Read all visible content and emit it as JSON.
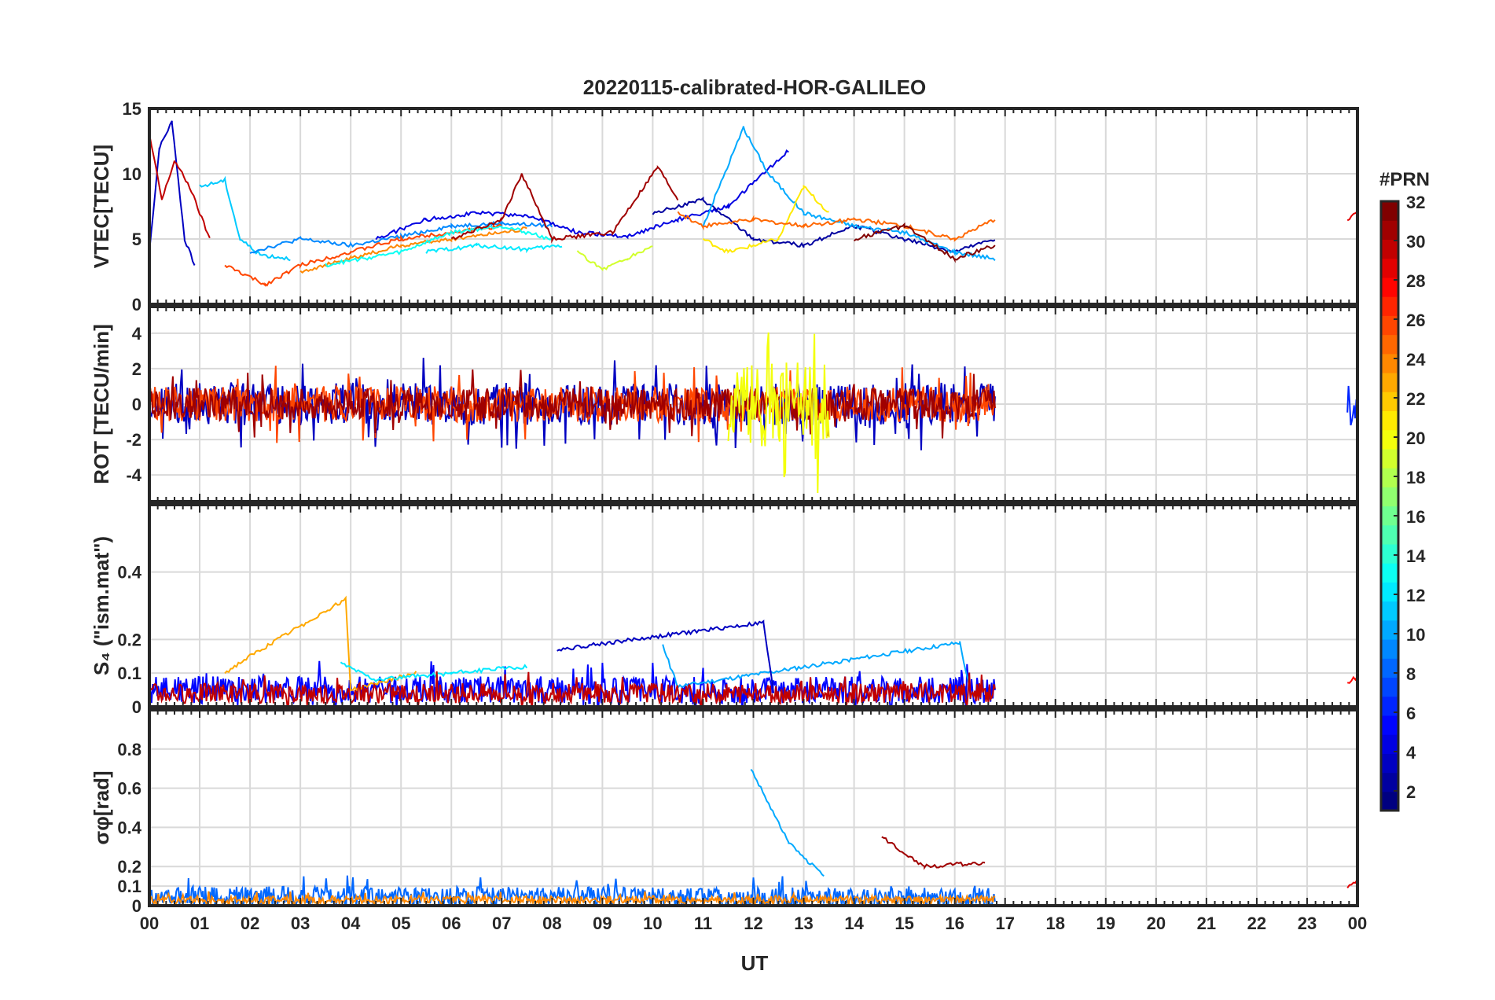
{
  "chart_data": {
    "type": "line",
    "title": "20220115-calibrated-HOR-GALILEO",
    "xlabel": "UT",
    "x_tick_labels": [
      "00",
      "01",
      "02",
      "03",
      "04",
      "05",
      "06",
      "07",
      "08",
      "09",
      "10",
      "11",
      "12",
      "13",
      "14",
      "15",
      "16",
      "17",
      "18",
      "19",
      "20",
      "21",
      "22",
      "23",
      "00"
    ],
    "xlim": [
      0,
      24
    ],
    "grid": true,
    "colorbar": {
      "label": "#PRN",
      "range": [
        1,
        32
      ],
      "ticks": [
        "2",
        "4",
        "6",
        "8",
        "10",
        "12",
        "14",
        "16",
        "18",
        "20",
        "22",
        "24",
        "26",
        "28",
        "30",
        "32"
      ],
      "colormap": "jet"
    },
    "panels": [
      {
        "ylabel": "VTEC[TECU]",
        "ylim": [
          0,
          15
        ],
        "y_ticks": [
          "0",
          "5",
          "10",
          "15"
        ],
        "series": [
          {
            "prn": 3,
            "points": [
              [
                0,
                4
              ],
              [
                0.2,
                12
              ],
              [
                0.45,
                14
              ],
              [
                0.7,
                5
              ],
              [
                0.9,
                3
              ]
            ]
          },
          {
            "prn": 30,
            "points": [
              [
                0,
                13
              ],
              [
                0.25,
                8
              ],
              [
                0.5,
                11
              ],
              [
                0.8,
                9
              ],
              [
                1.2,
                5
              ]
            ]
          },
          {
            "prn": 11,
            "points": [
              [
                1,
                9
              ],
              [
                1.5,
                9.5
              ],
              [
                1.8,
                5
              ],
              [
                2.2,
                3.8
              ],
              [
                2.8,
                3.5
              ]
            ]
          },
          {
            "prn": 9,
            "points": [
              [
                2,
                4
              ],
              [
                3,
                5
              ],
              [
                4,
                4.5
              ],
              [
                5,
                5.2
              ],
              [
                6,
                6
              ],
              [
                7,
                6.2
              ],
              [
                8,
                6
              ]
            ]
          },
          {
            "prn": 26,
            "points": [
              [
                1.5,
                3
              ],
              [
                2.3,
                1.5
              ],
              [
                3,
                3
              ],
              [
                4,
                4
              ],
              [
                5,
                5
              ],
              [
                6,
                5.5
              ],
              [
                7,
                6
              ]
            ]
          },
          {
            "prn": 24,
            "points": [
              [
                3,
                2.5
              ],
              [
                4,
                3.5
              ],
              [
                5,
                4.5
              ],
              [
                6,
                5
              ],
              [
                7.5,
                5.8
              ]
            ]
          },
          {
            "prn": 13,
            "points": [
              [
                3.5,
                3
              ],
              [
                5,
                4
              ],
              [
                6,
                5.5
              ],
              [
                7,
                6
              ],
              [
                8,
                5
              ]
            ]
          },
          {
            "prn": 12,
            "points": [
              [
                5.5,
                4
              ],
              [
                6.5,
                4.5
              ],
              [
                7.5,
                4.2
              ],
              [
                8.2,
                4.5
              ]
            ]
          },
          {
            "prn": 4,
            "points": [
              [
                4.5,
                5
              ],
              [
                5.5,
                6.5
              ],
              [
                6.5,
                7
              ],
              [
                7.5,
                6.8
              ],
              [
                8.5,
                5.5
              ],
              [
                9.5,
                5.2
              ],
              [
                10.5,
                6.5
              ],
              [
                11.5,
                7.5
              ],
              [
                12.7,
                11.8
              ]
            ]
          },
          {
            "prn": 31,
            "points": [
              [
                6,
                5
              ],
              [
                7,
                6.5
              ],
              [
                7.4,
                10
              ],
              [
                8,
                5
              ],
              [
                9.2,
                5.5
              ],
              [
                10.1,
                10.5
              ],
              [
                10.5,
                8
              ]
            ]
          },
          {
            "prn": 19,
            "points": [
              [
                8.5,
                4
              ],
              [
                9,
                2.7
              ],
              [
                9.5,
                3.5
              ],
              [
                10,
                4.5
              ]
            ]
          },
          {
            "prn": 2,
            "points": [
              [
                10,
                7
              ],
              [
                11,
                8
              ],
              [
                12,
                5
              ],
              [
                13,
                4.5
              ],
              [
                14,
                6
              ],
              [
                15,
                5
              ],
              [
                16,
                4
              ],
              [
                16.8,
                5
              ]
            ]
          },
          {
            "prn": 10,
            "points": [
              [
                11,
                6
              ],
              [
                11.8,
                13.5
              ],
              [
                12.3,
                10
              ],
              [
                13,
                7
              ],
              [
                14,
                6
              ],
              [
                15,
                5.5
              ],
              [
                16,
                4
              ],
              [
                16.8,
                3.5
              ]
            ]
          },
          {
            "prn": 21,
            "points": [
              [
                11,
                5
              ],
              [
                11.5,
                4
              ],
              [
                12,
                4.5
              ],
              [
                12.5,
                5
              ],
              [
                13,
                9
              ],
              [
                13.5,
                7
              ]
            ]
          },
          {
            "prn": 25,
            "points": [
              [
                10.5,
                7
              ],
              [
                11,
                6
              ],
              [
                12,
                6.5
              ],
              [
                13,
                6
              ],
              [
                14,
                6.5
              ],
              [
                15,
                6
              ],
              [
                16,
                5
              ],
              [
                16.8,
                6.5
              ]
            ]
          },
          {
            "prn": 32,
            "points": [
              [
                14,
                5
              ],
              [
                15,
                6
              ],
              [
                16,
                3.5
              ],
              [
                16.8,
                4.5
              ]
            ]
          },
          {
            "prn": 29,
            "points": [
              [
                23.8,
                6.5
              ],
              [
                24,
                7
              ]
            ]
          }
        ]
      },
      {
        "ylabel": "ROT [TECU/min]",
        "ylim": [
          -5.5,
          5.5
        ],
        "y_ticks": [
          "-4",
          "-2",
          "0",
          "2",
          "4"
        ],
        "series": [
          {
            "prn": 3,
            "points": [
              [
                0,
                0
              ],
              [
                16.8,
                0
              ]
            ],
            "amplitude": 1.2
          },
          {
            "prn": 26,
            "points": [
              [
                0,
                0
              ],
              [
                16.8,
                0
              ]
            ],
            "amplitude": 1.0
          },
          {
            "prn": 31,
            "points": [
              [
                0,
                0
              ],
              [
                16.8,
                0
              ]
            ],
            "amplitude": 0.9
          },
          {
            "prn": 20,
            "points": [
              [
                11.5,
                0
              ],
              [
                13.5,
                0
              ]
            ],
            "amplitude": 2.4
          },
          {
            "prn": 6,
            "points": [
              [
                23.8,
                0
              ],
              [
                24,
                0
              ]
            ],
            "amplitude": 1.2
          }
        ]
      },
      {
        "ylabel": "S₄ (\"ism.mat\")",
        "ylim": [
          0,
          0.6
        ],
        "y_ticks": [
          "0",
          "0.1",
          "0.2",
          "0.4"
        ],
        "series": [
          {
            "prn": 5,
            "points": [
              [
                0,
                0.05
              ],
              [
                16.8,
                0.05
              ]
            ],
            "amplitude": 0.04
          },
          {
            "prn": 23,
            "points": [
              [
                1.5,
                0.1
              ],
              [
                2,
                0.15
              ],
              [
                3.9,
                0.32
              ],
              [
                4,
                0.05
              ],
              [
                5.3,
                0.1
              ]
            ]
          },
          {
            "prn": 12,
            "points": [
              [
                3.8,
                0.13
              ],
              [
                4.5,
                0.08
              ],
              [
                6,
                0.1
              ],
              [
                7.5,
                0.12
              ]
            ]
          },
          {
            "prn": 10,
            "points": [
              [
                10.2,
                0.18
              ],
              [
                10.5,
                0.06
              ],
              [
                16.1,
                0.19
              ],
              [
                16.3,
                0.05
              ]
            ]
          },
          {
            "prn": 3,
            "points": [
              [
                8.1,
                0.17
              ],
              [
                12.2,
                0.25
              ],
              [
                12.4,
                0.04
              ]
            ]
          },
          {
            "prn": 30,
            "points": [
              [
                0,
                0.04
              ],
              [
                16.8,
                0.04
              ]
            ],
            "amplitude": 0.03
          },
          {
            "prn": 28,
            "points": [
              [
                23.8,
                0.07
              ],
              [
                24,
                0.09
              ]
            ]
          }
        ]
      },
      {
        "ylabel": "σφ[rad]",
        "ylim": [
          0,
          1
        ],
        "y_ticks": [
          "0",
          "0.1",
          "0.2",
          "0.4",
          "0.6",
          "0.8"
        ],
        "series": [
          {
            "prn": 8,
            "points": [
              [
                0,
                0.05
              ],
              [
                16.8,
                0.04
              ]
            ],
            "amplitude": 0.05
          },
          {
            "prn": 10,
            "points": [
              [
                11.95,
                0.7
              ],
              [
                12.7,
                0.32
              ],
              [
                13.4,
                0.15
              ]
            ]
          },
          {
            "prn": 31,
            "points": [
              [
                14.55,
                0.35
              ],
              [
                15.4,
                0.2
              ],
              [
                16.6,
                0.22
              ]
            ]
          },
          {
            "prn": 24,
            "points": [
              [
                0,
                0.03
              ],
              [
                16.8,
                0.03
              ]
            ],
            "amplitude": 0.02
          },
          {
            "prn": 29,
            "points": [
              [
                23.8,
                0.1
              ],
              [
                24,
                0.13
              ]
            ]
          }
        ]
      }
    ]
  }
}
